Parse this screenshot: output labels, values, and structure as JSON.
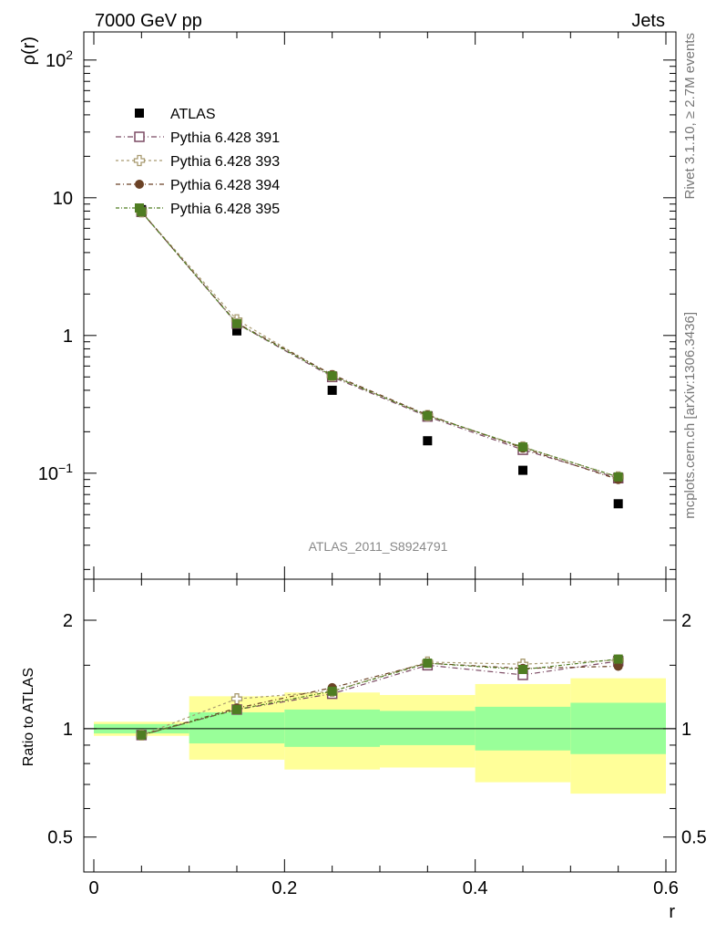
{
  "header": {
    "left": "7000 GeV pp",
    "right": "Jets"
  },
  "side_labels": {
    "top": "Rivet 3.1.10, ≥ 2.7M events",
    "bottom": "mcplots.cern.ch [arXiv:1306.3436]"
  },
  "chart_data": [
    {
      "type": "scatter",
      "panel": "main",
      "title": "",
      "xlabel": "",
      "ylabel": "ρ(r)",
      "yscale": "log",
      "xlim": [
        0,
        0.6
      ],
      "ylim": [
        0.017,
        160
      ],
      "annotation": "ATLAS_2011_S8924791",
      "legend_placement": "top-left",
      "y_tick_labels": [
        {
          "value": 100,
          "base": "10",
          "exp": "2"
        },
        {
          "value": 10,
          "base": "10",
          "exp": ""
        },
        {
          "value": 1,
          "base": "1",
          "exp": ""
        },
        {
          "value": 0.1,
          "base": "10",
          "exp": "−1"
        }
      ],
      "x": [
        0.05,
        0.15,
        0.25,
        0.35,
        0.45,
        0.55
      ],
      "series": [
        {
          "name": "ATLAS",
          "color": "#000000",
          "marker": "square-filled",
          "values": [
            8.2,
            1.08,
            0.4,
            0.172,
            0.105,
            0.06
          ]
        },
        {
          "name": "Pythia 6.428 391",
          "color": "#7b4a63",
          "marker": "square-open",
          "values": [
            7.9,
            1.22,
            0.5,
            0.258,
            0.148,
            0.092
          ]
        },
        {
          "name": "Pythia 6.428 393",
          "color": "#a99b70",
          "marker": "cross-open",
          "values": [
            7.9,
            1.3,
            0.51,
            0.262,
            0.155,
            0.094
          ]
        },
        {
          "name": "Pythia 6.428 394",
          "color": "#6b4226",
          "marker": "circle-filled",
          "values": [
            7.9,
            1.23,
            0.52,
            0.265,
            0.152,
            0.09
          ]
        },
        {
          "name": "Pythia 6.428 395",
          "color": "#4f7d22",
          "marker": "square-filled",
          "values": [
            7.9,
            1.22,
            0.51,
            0.262,
            0.155,
            0.094
          ]
        }
      ]
    },
    {
      "type": "scatter",
      "panel": "ratio",
      "xlabel": "r",
      "ylabel": "Ratio to ATLAS",
      "yscale": "log",
      "xlim": [
        0,
        0.6
      ],
      "ylim": [
        0.4,
        2.6
      ],
      "x_tick_labels": [
        "0",
        "0.2",
        "0.4",
        "0.6"
      ],
      "y_tick_labels": [
        "0.5",
        "1",
        "2"
      ],
      "bands": [
        {
          "xmin": 0.0,
          "xmax": 0.1,
          "stat_lo": 0.97,
          "stat_hi": 1.03,
          "tot_lo": 0.955,
          "tot_hi": 1.045
        },
        {
          "xmin": 0.1,
          "xmax": 0.2,
          "stat_lo": 0.91,
          "stat_hi": 1.11,
          "tot_lo": 0.82,
          "tot_hi": 1.23
        },
        {
          "xmin": 0.2,
          "xmax": 0.3,
          "stat_lo": 0.89,
          "stat_hi": 1.13,
          "tot_lo": 0.77,
          "tot_hi": 1.26
        },
        {
          "xmin": 0.3,
          "xmax": 0.4,
          "stat_lo": 0.9,
          "stat_hi": 1.12,
          "tot_lo": 0.78,
          "tot_hi": 1.24
        },
        {
          "xmin": 0.4,
          "xmax": 0.5,
          "stat_lo": 0.87,
          "stat_hi": 1.15,
          "tot_lo": 0.71,
          "tot_hi": 1.33
        },
        {
          "xmin": 0.5,
          "xmax": 0.6,
          "stat_lo": 0.85,
          "stat_hi": 1.18,
          "tot_lo": 0.66,
          "tot_hi": 1.38
        }
      ],
      "x": [
        0.05,
        0.15,
        0.25,
        0.35,
        0.45,
        0.55
      ],
      "series": [
        {
          "name": "Pythia 6.428 391",
          "color": "#7b4a63",
          "marker": "square-open",
          "values": [
            0.96,
            1.13,
            1.25,
            1.5,
            1.41,
            1.54
          ]
        },
        {
          "name": "Pythia 6.428 393",
          "color": "#a99b70",
          "marker": "cross-open",
          "values": [
            0.96,
            1.21,
            1.27,
            1.53,
            1.51,
            1.55
          ]
        },
        {
          "name": "Pythia 6.428 394",
          "color": "#6b4226",
          "marker": "circle-filled",
          "values": [
            0.96,
            1.14,
            1.3,
            1.52,
            1.47,
            1.49
          ]
        },
        {
          "name": "Pythia 6.428 395",
          "color": "#4f7d22",
          "marker": "square-filled",
          "values": [
            0.96,
            1.13,
            1.27,
            1.52,
            1.46,
            1.56
          ]
        }
      ]
    }
  ],
  "colors": {
    "stat_band": "#99ff99",
    "total_band": "#ffff99",
    "annotation": "#888888"
  }
}
